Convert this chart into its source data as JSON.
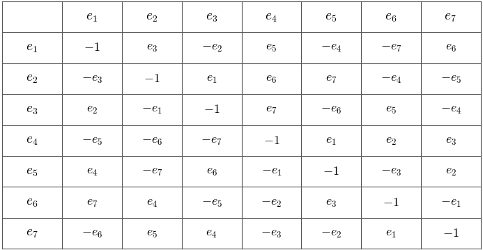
{
  "col_headers": [
    "",
    "$\\mathbf{\\mathit{e}}_1$",
    "$\\mathbf{\\mathit{e}}_2$",
    "$\\mathbf{\\mathit{e}}_3$",
    "$\\mathbf{\\mathit{e}}_4$",
    "$\\mathbf{\\mathit{e}}_5$",
    "$\\mathbf{\\mathit{e}}_6$",
    "$\\mathbf{\\mathit{e}}_7$"
  ],
  "row_headers": [
    "$\\mathbf{\\mathit{e}}_1$",
    "$\\mathbf{\\mathit{e}}_2$",
    "$\\mathbf{\\mathit{e}}_3$",
    "$\\mathbf{\\mathit{e}}_4$",
    "$\\mathbf{\\mathit{e}}_5$",
    "$\\mathbf{\\mathit{e}}_6$",
    "$\\mathbf{\\mathit{e}}_7$"
  ],
  "table_data": [
    [
      "$-1$",
      "$e_3$",
      "$-e_2$",
      "$e_5$",
      "$-e_4$",
      "$-e_7$",
      "$e_6$"
    ],
    [
      "$-e_3$",
      "$-1$",
      "$e_1$",
      "$e_6$",
      "$e_7$",
      "$-e_4$",
      "$-e_5$"
    ],
    [
      "$e_2$",
      "$-e_1$",
      "$-1$",
      "$e_7$",
      "$-e_6$",
      "$e_5$",
      "$-e_4$"
    ],
    [
      "$-e_5$",
      "$-e_6$",
      "$-e_7$",
      "$-1$",
      "$e_1$",
      "$e_2$",
      "$e_3$"
    ],
    [
      "$e_4$",
      "$-e_7$",
      "$e_6$",
      "$-e_1$",
      "$-1$",
      "$-e_3$",
      "$e_2$"
    ],
    [
      "$e_7$",
      "$e_4$",
      "$-e_5$",
      "$-e_2$",
      "$e_3$",
      "$-1$",
      "$-e_1$"
    ],
    [
      "$-e_6$",
      "$e_5$",
      "$e_4$",
      "$-e_3$",
      "$-e_2$",
      "$e_1$",
      "$-1$"
    ]
  ],
  "background_color": "#ffffff",
  "grid_color": "#555555",
  "text_color": "#000000",
  "n_rows": 8,
  "n_cols": 8,
  "figwidth": 6.93,
  "figheight": 3.59,
  "fontsize_header": 14,
  "fontsize_data": 13
}
